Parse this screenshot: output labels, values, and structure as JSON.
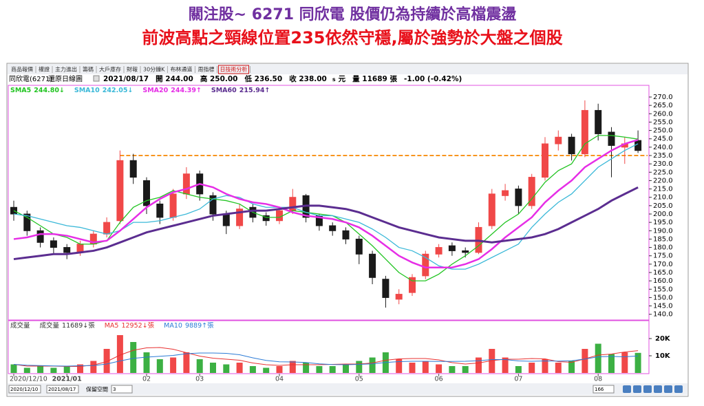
{
  "header": {
    "title": "關注股~ 6271 同欣電  股價仍為持續於高檔震盪",
    "subtitle": "前波高點之頸線位置235依然守穩,屬於強勢於大盤之個股"
  },
  "toolbar": {
    "tabs": [
      "商品報價",
      "權證",
      "主力進出",
      "籌碼",
      "大戶庫存",
      "財報",
      "30分鐘K",
      "布林通道",
      "周指標",
      "日技術分析"
    ]
  },
  "info": {
    "stock": "同欣電(6271)",
    "chart_kind": "還原日線圖",
    "date": "2021/08/17",
    "fields": [
      "開 244.00",
      "高 250.00",
      "低 236.50",
      "收 238.00"
    ],
    "unit_s": "s",
    "unit": "元",
    "volume": "量 11689 張",
    "change": "-1.00 (-0.42%)"
  },
  "chart_data": [
    {
      "type": "candlestick",
      "categories": [
        "2020/12/10",
        null,
        null,
        null,
        "2021/01",
        null,
        null,
        null,
        null,
        null,
        "02",
        null,
        null,
        null,
        "03",
        null,
        null,
        null,
        null,
        null,
        "04",
        null,
        null,
        null,
        null,
        null,
        "05",
        null,
        null,
        null,
        null,
        null,
        "06",
        null,
        null,
        null,
        null,
        null,
        "07",
        null,
        null,
        null,
        null,
        null,
        "08",
        null,
        null,
        null
      ],
      "open": [
        204,
        200,
        190,
        184,
        180,
        177,
        182,
        188,
        196,
        232,
        220,
        206,
        198,
        212,
        224,
        211,
        200,
        193,
        204,
        199,
        196,
        202,
        211,
        199,
        193,
        190,
        185,
        176,
        161,
        149,
        153,
        163,
        176,
        181,
        178,
        177,
        193,
        211,
        215,
        205,
        222,
        242,
        246,
        236,
        262,
        249,
        240,
        244
      ],
      "high": [
        208,
        202,
        192,
        186,
        182,
        184,
        190,
        198,
        238,
        236,
        222,
        208,
        215,
        228,
        226,
        213,
        202,
        206,
        206,
        201,
        204,
        215,
        212,
        200,
        195,
        192,
        187,
        178,
        163,
        155,
        164,
        178,
        182,
        183,
        180,
        195,
        215,
        218,
        217,
        224,
        246,
        250,
        248,
        268,
        266,
        252,
        246,
        250
      ],
      "low": [
        196,
        187,
        180,
        176,
        173,
        175,
        180,
        186,
        194,
        218,
        200,
        194,
        196,
        209,
        208,
        196,
        188,
        191,
        195,
        193,
        194,
        200,
        195,
        190,
        187,
        182,
        170,
        158,
        144,
        146,
        151,
        161,
        174,
        175,
        174,
        176,
        191,
        208,
        200,
        203,
        220,
        238,
        232,
        234,
        244,
        222,
        230,
        236.5
      ],
      "close": [
        200,
        190,
        183,
        180,
        177,
        182,
        188,
        195,
        232,
        222,
        205,
        198,
        212,
        224,
        212,
        200,
        193,
        203,
        198,
        196,
        202,
        210,
        198,
        193,
        190,
        185,
        176,
        162,
        150,
        152,
        162,
        176,
        180,
        178,
        177,
        192,
        212,
        214,
        205,
        222,
        242,
        246,
        236,
        262,
        248,
        241,
        242,
        238
      ],
      "up_color": "#f04848",
      "down_color": "#1a1a1a",
      "series": [
        {
          "name": "SMA5",
          "color": "#22c422",
          "last_label": "244.80↓",
          "values": [
            202,
            198,
            193,
            188,
            186,
            182,
            182,
            184,
            195,
            204,
            208,
            210,
            214,
            212,
            210,
            209,
            208,
            206,
            201,
            198,
            198,
            202,
            201,
            200,
            199,
            195,
            188,
            181,
            173,
            165,
            160,
            160,
            164,
            170,
            175,
            181,
            188,
            195,
            200,
            209,
            219,
            226,
            230,
            242,
            247,
            247,
            246,
            244.8
          ]
        },
        {
          "name": "SMA10",
          "color": "#3ab8d8",
          "last_label": "242.05↓",
          "values": [
            200,
            199,
            197,
            195,
            193,
            192,
            190,
            188,
            190,
            195,
            195,
            196,
            198,
            200,
            203,
            209,
            211,
            210,
            206,
            204,
            204,
            204,
            201,
            199,
            199,
            197,
            195,
            191,
            186,
            180,
            178,
            174,
            169,
            167,
            167,
            170,
            174,
            178,
            182,
            192,
            200,
            207,
            212,
            220,
            228,
            233,
            238,
            242.05
          ]
        },
        {
          "name": "SMA20",
          "color": "#e62ee6",
          "last_label": "244.39↑",
          "values": [
            185,
            186,
            188,
            188,
            187,
            185,
            183,
            184,
            190,
            197,
            204,
            209,
            213,
            215,
            218,
            216,
            212,
            209,
            207,
            206,
            204,
            201,
            199,
            198,
            197,
            195,
            192,
            187,
            181,
            175,
            171,
            168,
            168,
            168,
            170,
            173,
            179,
            186,
            192,
            198,
            207,
            214,
            220,
            228,
            233,
            238,
            242,
            244.39
          ]
        },
        {
          "name": "SMA60",
          "color": "#5b2d90",
          "last_label": "215.94↑",
          "values": [
            173,
            174,
            175,
            176,
            176,
            177,
            178,
            180,
            183,
            186,
            189,
            191,
            193,
            195,
            197,
            199,
            200,
            201,
            202,
            202,
            203,
            204,
            205,
            205,
            204,
            203,
            201,
            198,
            195,
            192,
            190,
            188,
            186,
            185,
            184,
            184,
            183,
            184,
            185,
            186,
            188,
            191,
            195,
            199,
            203,
            208,
            212,
            215.94
          ]
        }
      ],
      "ylim": [
        137,
        277
      ],
      "yticks": [
        {
          "value": 140,
          "label": "140.0"
        },
        {
          "value": 145,
          "label": "145.0"
        },
        {
          "value": 150,
          "label": "150.0"
        },
        {
          "value": 155,
          "label": "155.0"
        },
        {
          "value": 160,
          "label": "160.0"
        },
        {
          "value": 165,
          "label": "165.0"
        },
        {
          "value": 170,
          "label": "170.0"
        },
        {
          "value": 175,
          "label": "175.0"
        },
        {
          "value": 180,
          "label": "180.0"
        },
        {
          "value": 185,
          "label": "185.0"
        },
        {
          "value": 190,
          "label": "190.0"
        },
        {
          "value": 195,
          "label": "195.0"
        },
        {
          "value": 200,
          "label": "200.0"
        },
        {
          "value": 205,
          "label": "205.0"
        },
        {
          "value": 210,
          "label": "210.0"
        },
        {
          "value": 215,
          "label": "215.0"
        },
        {
          "value": 220,
          "label": "220.0"
        },
        {
          "value": 225,
          "label": "225.0"
        },
        {
          "value": 230,
          "label": "230.0"
        },
        {
          "value": 235,
          "label": "235.0"
        },
        {
          "value": 240,
          "label": "240.0"
        },
        {
          "value": 245,
          "label": "245.0"
        },
        {
          "value": 250,
          "label": "250.0"
        },
        {
          "value": 255,
          "label": "255.0"
        },
        {
          "value": 260,
          "label": "260.0"
        },
        {
          "value": 265,
          "label": "265.0"
        },
        {
          "value": 270,
          "label": "270.0"
        }
      ],
      "reference_line": {
        "y": 235,
        "x_start": 8,
        "color": "#f7941d"
      }
    },
    {
      "type": "bar",
      "title": "成交量",
      "volume_label": "成交量",
      "last_label": "11689↓張",
      "values": [
        5000,
        3000,
        4000,
        3000,
        4000,
        5000,
        7000,
        14000,
        22000,
        18000,
        12000,
        8000,
        9000,
        12000,
        8000,
        6000,
        5000,
        6000,
        4000,
        3000,
        4000,
        7000,
        6000,
        4000,
        4000,
        5000,
        7000,
        9000,
        12000,
        8000,
        6000,
        7000,
        5000,
        4000,
        4000,
        9000,
        14000,
        9000,
        4000,
        6000,
        8000,
        6000,
        7000,
        14000,
        17000,
        11000,
        12000,
        11689
      ],
      "up_color": "#f04848",
      "down_color": "#3cb043",
      "series": [
        {
          "name": "MA5",
          "color": "#e83030",
          "last_label": "12952↓張",
          "values": [
            5000,
            4000,
            4000,
            4000,
            3800,
            3800,
            4600,
            6600,
            10400,
            13200,
            14600,
            14800,
            13800,
            11800,
            9800,
            8600,
            8000,
            7400,
            5800,
            4800,
            4400,
            4800,
            4800,
            4800,
            5000,
            5200,
            5200,
            5800,
            7400,
            8200,
            8400,
            8400,
            7600,
            6000,
            5200,
            5800,
            7200,
            8000,
            8000,
            8400,
            8200,
            6600,
            6200,
            8200,
            10400,
            11000,
            12200,
            12952
          ]
        },
        {
          "name": "MA10",
          "color": "#2b7bd6",
          "last_label": "9889↑張",
          "values": [
            5000,
            4500,
            4300,
            4100,
            4000,
            4200,
            4300,
            5200,
            7000,
            8500,
            9200,
            9700,
            10200,
            11200,
            11600,
            11600,
            11400,
            10600,
            8800,
            7300,
            6500,
            6400,
            6100,
            5300,
            4900,
            4800,
            5000,
            5300,
            6100,
            6600,
            6800,
            6800,
            6700,
            6700,
            6800,
            7100,
            7800,
            7800,
            7000,
            6800,
            7000,
            6900,
            7100,
            8100,
            9400,
            9600,
            9400,
            9889
          ]
        }
      ],
      "ylim": [
        0,
        30000
      ],
      "yticks": [
        {
          "value": 10000,
          "label": "10K"
        },
        {
          "value": 20000,
          "label": "20K"
        }
      ]
    }
  ],
  "footer": {
    "from": "2020/12/10",
    "to": "2021/08/17",
    "reserve_label": "保留空間",
    "reserve_value": "3",
    "count": "166"
  }
}
